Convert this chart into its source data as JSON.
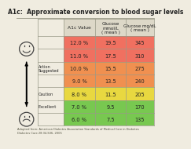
{
  "title": "A1c:  Approximate conversion to blood sugar levels",
  "col_headers": [
    "A1c Value",
    "Glucose\nmmol/L\n( mean )",
    "Glucose mg/dL\n( mean )"
  ],
  "rows": [
    {
      "label": "",
      "a1c": "12.0 %",
      "mmol": "19.5",
      "mgdl": "345",
      "color": "#f07060"
    },
    {
      "label": "",
      "a1c": "11.0 %",
      "mmol": "17.5",
      "mgdl": "310",
      "color": "#f07060"
    },
    {
      "label": "Action\nSuggested",
      "a1c": "10.0 %",
      "mmol": "15.5",
      "mgdl": "275",
      "color": "#f09050"
    },
    {
      "label": "",
      "a1c": "9.0 %",
      "mmol": "13.5",
      "mgdl": "240",
      "color": "#f09050"
    },
    {
      "label": "Caution",
      "a1c": "8.0 %",
      "mmol": "11.5",
      "mgdl": "205",
      "color": "#e8d840"
    },
    {
      "label": "Excellent",
      "a1c": "7.0 %",
      "mmol": "9.5",
      "mgdl": "170",
      "color": "#78c850"
    },
    {
      "label": "",
      "a1c": "6.0 %",
      "mmol": "7.5",
      "mgdl": "135",
      "color": "#78c850"
    }
  ],
  "footer": "Adapted from: American Diabetes Association Standards of Medical Care in Diabetes\nDiabetes Care 28:34-S36, 2005",
  "bg_color": "#f0ece0",
  "header_color": "#ddd8c8",
  "border_color": "#999988",
  "text_color": "#222222",
  "title_fontsize": 5.5,
  "header_fontsize": 4.3,
  "cell_fontsize": 4.8,
  "label_fontsize": 3.6,
  "footer_fontsize": 2.6
}
